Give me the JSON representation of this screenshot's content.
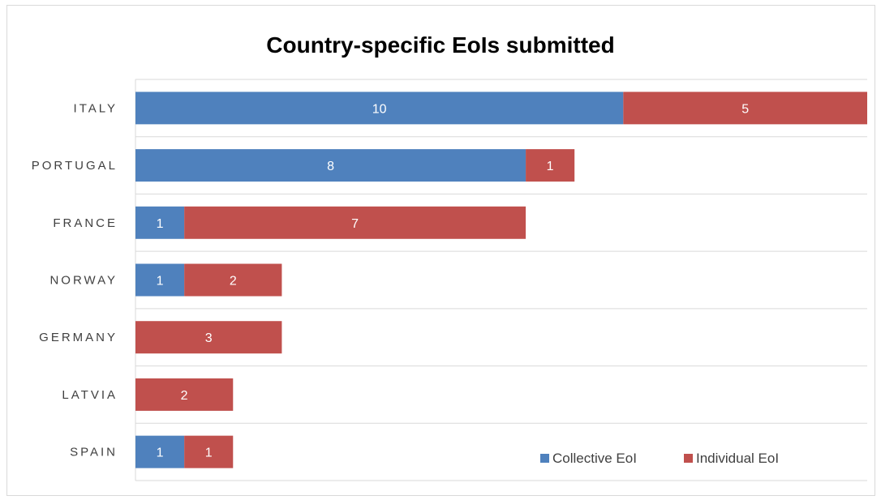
{
  "chart_data": {
    "type": "bar",
    "orientation": "horizontal",
    "stacked": true,
    "title": "Country-specific EoIs submitted",
    "categories": [
      "ITALY",
      "PORTUGAL",
      "FRANCE",
      "NORWAY",
      "GERMANY",
      "LATVIA",
      "SPAIN"
    ],
    "series": [
      {
        "name": "Collective EoI",
        "color": "#4f81bd",
        "values": [
          10,
          8,
          1,
          1,
          0,
          0,
          1
        ]
      },
      {
        "name": "Individual EoI",
        "color": "#c0504d",
        "values": [
          5,
          1,
          7,
          2,
          3,
          2,
          1
        ]
      }
    ],
    "xlim": [
      0,
      15
    ],
    "grid": true,
    "legend_position": "bottom-right",
    "data_labels": true
  }
}
